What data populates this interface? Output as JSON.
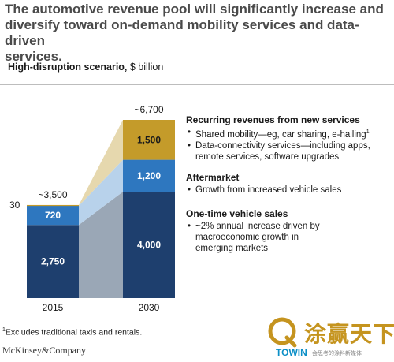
{
  "title": "The automotive revenue pool will significantly increase and\ndiversify toward on-demand mobility services and data-driven\nservices.",
  "subtitle": {
    "bold": "High-disruption scenario,",
    "rest": " $ billion"
  },
  "colors": {
    "one_time": "#1e3f6e",
    "aftermarket": "#2e77bf",
    "recurring": "#c49b2a",
    "recurring_shade": "#e6d8ae",
    "aftermarket_shade": "#b8d2eb",
    "one_time_shade": "#9aa7b6",
    "recurring_head": "#c49b2a",
    "aftermarket_head": "#1f63ac",
    "one_time_head": "#1f63ac"
  },
  "chart_data": {
    "type": "bar",
    "stacked": true,
    "categories": [
      "2015",
      "2030"
    ],
    "series": [
      {
        "name": "One-time vehicle sales",
        "values": [
          2750,
          4000
        ]
      },
      {
        "name": "Aftermarket",
        "values": [
          720,
          1200
        ]
      },
      {
        "name": "Recurring revenues from new services",
        "values": [
          30,
          1500
        ]
      }
    ],
    "totals": [
      "~3,500",
      "~6,700"
    ],
    "segment_labels": [
      [
        "2,750",
        "720",
        "30"
      ],
      [
        "4,000",
        "1,200",
        "1,500"
      ]
    ],
    "ylim": [
      0,
      6700
    ],
    "grid": false
  },
  "legend": {
    "recurring": {
      "title": "Recurring revenues from new services",
      "bullets": [
        "Shared mobility—eg, car sharing, e-hailing",
        "Data-connectivity services—including apps, remote services, software upgrades"
      ],
      "sup": "1"
    },
    "aftermarket": {
      "title": "Aftermarket",
      "bullets": [
        "Growth from increased vehicle sales"
      ]
    },
    "one_time": {
      "title": "One-time vehicle sales",
      "bullets": [
        "~2% annual increase driven by macroeconomic growth in emerging markets"
      ]
    }
  },
  "footnote": {
    "sup": "1",
    "text": "Excludes traditional taxis and rentals."
  },
  "brand": "McKinsey&Company",
  "watermark": {
    "chinese": "涂赢天下",
    "latin": "TOWIN",
    "tagline": "会思考的涂料新媒体"
  }
}
